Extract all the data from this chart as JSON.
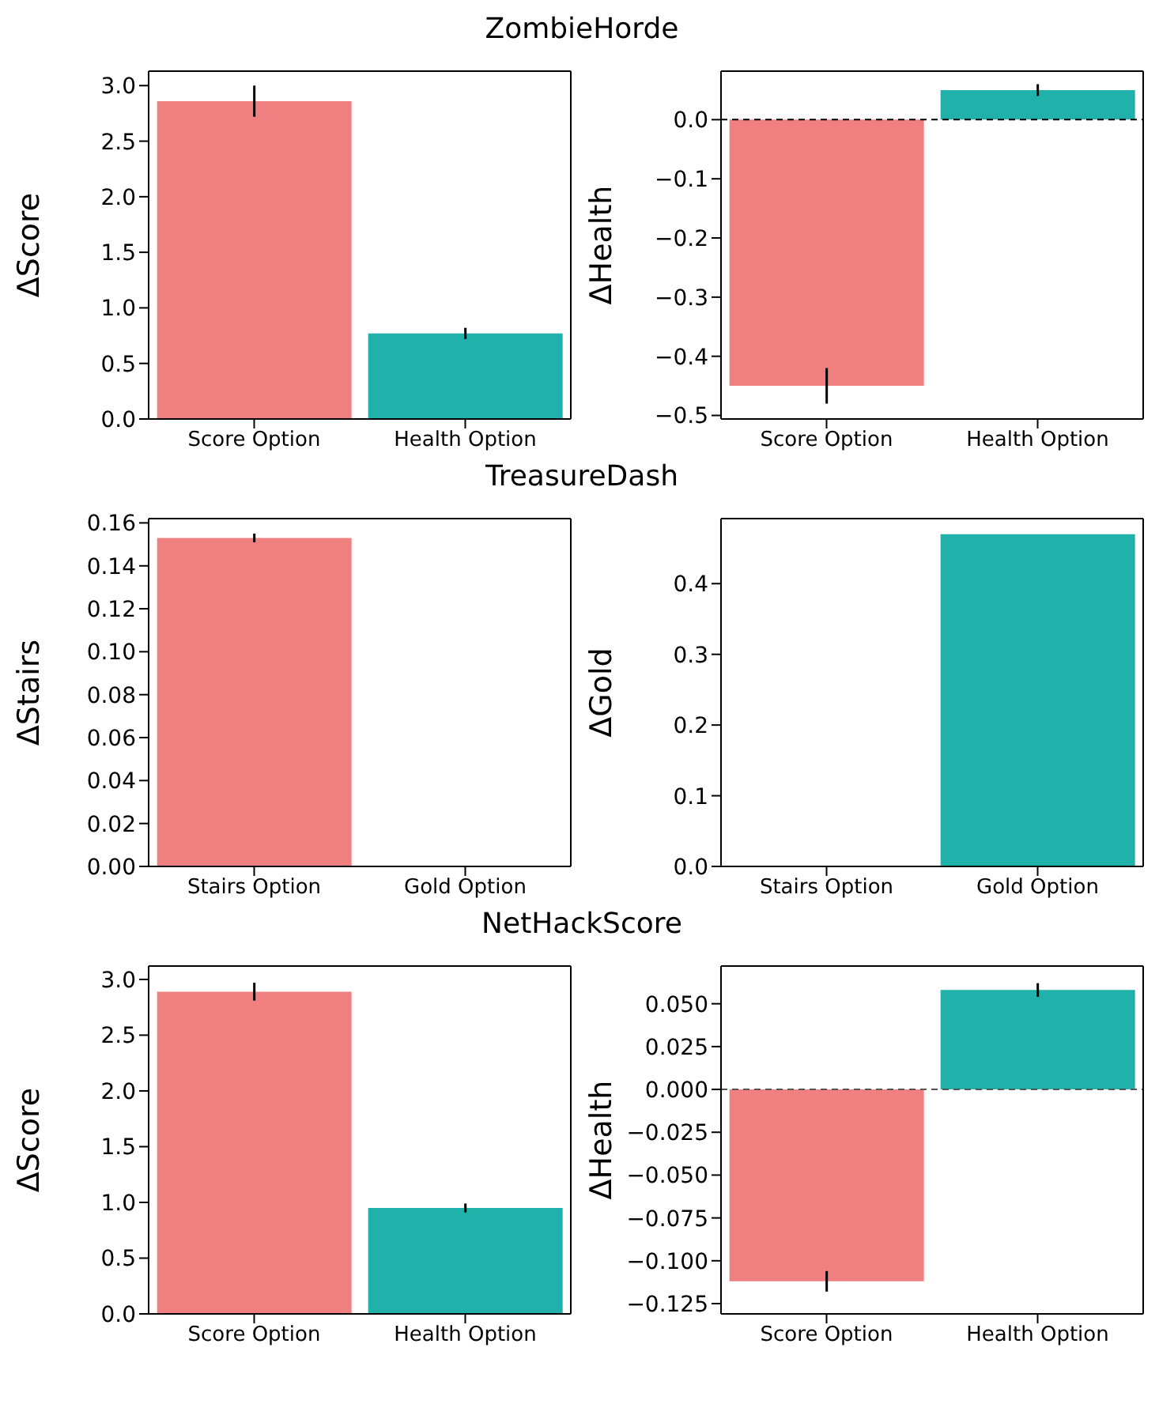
{
  "chart_data": [
    {
      "type": "bar",
      "title": "ZombieHorde",
      "ylabel": "ΔScore",
      "categories": [
        "Score Option",
        "Health Option"
      ],
      "values": [
        2.86,
        0.77
      ],
      "errors": [
        0.14,
        0.05
      ],
      "colors": [
        "#f08080",
        "#20b2aa"
      ],
      "ylim": [
        0,
        3.13
      ],
      "yticks": [
        {
          "value": 0,
          "label": "0.0"
        },
        0.5,
        {
          "value": 1,
          "label": "1.0"
        },
        1.5,
        {
          "value": 2,
          "label": "2.0"
        },
        2.5,
        {
          "value": 3,
          "label": "3.0"
        }
      ]
    },
    {
      "type": "bar",
      "ylabel": "ΔHealth",
      "categories": [
        "Score Option",
        "Health Option"
      ],
      "values": [
        -0.45,
        0.05
      ],
      "errors": [
        0.03,
        0.01
      ],
      "colors": [
        "#f08080",
        "#20b2aa"
      ],
      "ylim": [
        -0.506,
        0.082
      ],
      "yticks": [
        -0.5,
        -0.4,
        -0.3,
        -0.2,
        -0.1,
        {
          "value": 0,
          "label": "0.0"
        }
      ],
      "ref_lines": [
        {
          "axis": "y",
          "value": 0,
          "line_style": "dashed",
          "color": "#000000"
        }
      ]
    },
    {
      "type": "bar",
      "title": "TreasureDash",
      "ylabel": "ΔStairs",
      "categories": [
        "Stairs Option",
        "Gold Option"
      ],
      "values": [
        0.153,
        0
      ],
      "errors": [
        0.002,
        null
      ],
      "colors": [
        "#f08080",
        "#20b2aa"
      ],
      "ylim": [
        0,
        0.162
      ],
      "yticks": [
        {
          "value": 0,
          "label": "0.00"
        },
        0.02,
        0.04,
        0.06,
        0.08,
        {
          "value": 0.1,
          "label": "0.10"
        },
        0.12,
        0.14,
        0.16
      ]
    },
    {
      "type": "bar",
      "ylabel": "ΔGold",
      "categories": [
        "Stairs Option",
        "Gold Option"
      ],
      "values": [
        0,
        0.47
      ],
      "errors": [
        null,
        null
      ],
      "colors": [
        "#f08080",
        "#20b2aa"
      ],
      "ylim": [
        0,
        0.492
      ],
      "yticks": [
        {
          "value": 0,
          "label": "0.0"
        },
        0.1,
        0.2,
        0.3,
        0.4
      ]
    },
    {
      "type": "bar",
      "title": "NetHackScore",
      "ylabel": "ΔScore",
      "categories": [
        "Score Option",
        "Health Option"
      ],
      "values": [
        2.89,
        0.95
      ],
      "errors": [
        0.08,
        0.04
      ],
      "colors": [
        "#f08080",
        "#20b2aa"
      ],
      "ylim": [
        0,
        3.12
      ],
      "yticks": [
        {
          "value": 0,
          "label": "0.0"
        },
        0.5,
        {
          "value": 1,
          "label": "1.0"
        },
        1.5,
        {
          "value": 2,
          "label": "2.0"
        },
        2.5,
        {
          "value": 3,
          "label": "3.0"
        }
      ]
    },
    {
      "type": "bar",
      "ylabel": "ΔHealth",
      "categories": [
        "Score Option",
        "Health Option"
      ],
      "values": [
        -0.112,
        0.058
      ],
      "errors": [
        0.006,
        0.004
      ],
      "colors": [
        "#f08080",
        "#20b2aa"
      ],
      "ylim": [
        -0.131,
        0.072
      ],
      "yticks": [
        {
          "value": -0.125,
          "label": "−0.125"
        },
        {
          "value": -0.1,
          "label": "−0.100"
        },
        {
          "value": -0.075,
          "label": "−0.075"
        },
        {
          "value": -0.05,
          "label": "−0.050"
        },
        {
          "value": -0.025,
          "label": "−0.025"
        },
        {
          "value": 0,
          "label": "0.000"
        },
        {
          "value": 0.025,
          "label": "0.025"
        },
        {
          "value": 0.05,
          "label": "0.050"
        }
      ],
      "ref_lines": [
        {
          "axis": "y",
          "value": 0,
          "line_style": "dashed",
          "color": "#555555"
        }
      ]
    }
  ]
}
